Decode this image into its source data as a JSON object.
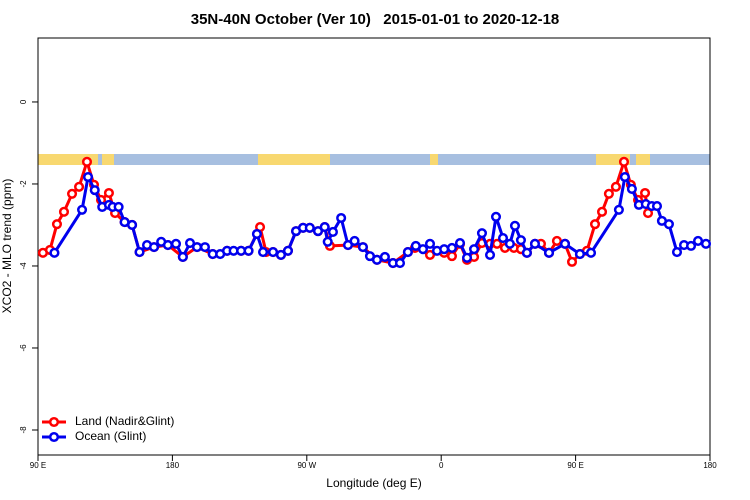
{
  "chart_data": {
    "type": "line",
    "title": "35N-40N October (Ver 10)   2015-01-01 to 2020-12-18",
    "xlabel": "Longitude (deg E)",
    "ylabel": "XCO2 - MLO trend (ppm)",
    "xlim": [
      90,
      540
    ],
    "ylim": [
      -8.61,
      1.56
    ],
    "xticks": [
      {
        "value": 90,
        "label": "90 E"
      },
      180,
      {
        "value": 270,
        "label": "90 W"
      },
      {
        "value": 360,
        "label": "0"
      },
      {
        "value": 450,
        "label": "90 E"
      },
      {
        "value": 540,
        "label": "180"
      }
    ],
    "yticks": [
      0,
      -2,
      -4,
      -6,
      -8
    ],
    "legend": "bottom left",
    "series": [
      {
        "name": "Land (Nadir&Glint)",
        "color": "#ff0000",
        "x": [
          93.3,
          98,
          102.7,
          107.4,
          112.8,
          117.5,
          122.8,
          127.5,
          132.2,
          137.5,
          141.6,
          148,
          153,
          158,
          167.7,
          177,
          187,
          196.5,
          207,
          216.6,
          226,
          231,
          238.7,
          242.7,
          247.4,
          252.7,
          257.4,
          262.8,
          267.5,
          272,
          277.5,
          282,
          285.5,
          297.6,
          307.6,
          317,
          327.7,
          337.7,
          342.4,
          352.5,
          362,
          367.2,
          372.6,
          377.3,
          382,
          387.3,
          392.7,
          397.4,
          402.7,
          408.7,
          413.4,
          417.4,
          422.8,
          426.8,
          432.2,
          437.5,
          442.9,
          447.6,
          452.9,
          457.6,
          463,
          467.7,
          472.3,
          477,
          482.4,
          487,
          491.8,
          496.5,
          498.5
        ],
        "values": [
          -3.68,
          -3.61,
          -2.98,
          -2.68,
          -2.24,
          -2.07,
          -1.46,
          -2.02,
          -2.39,
          -2.22,
          -2.71,
          -2.93,
          -3.0,
          -3.66,
          -3.54,
          -3.49,
          -3.78,
          -3.54,
          -3.71,
          -3.63,
          -3.63,
          -3.63,
          -3.05,
          -3.66,
          -3.66,
          -3.73,
          -3.63,
          -3.15,
          -3.07,
          -3.07,
          -3.15,
          -3.05,
          -3.51,
          -3.49,
          -3.54,
          -3.85,
          -3.93,
          -3.66,
          -3.56,
          -3.73,
          -3.68,
          -3.76,
          -3.46,
          -3.85,
          -3.78,
          -3.44,
          -3.46,
          -3.46,
          -3.56,
          -3.56,
          -3.59,
          -3.68,
          -3.46,
          -3.46,
          -3.68,
          -3.39,
          -3.46,
          -3.9,
          -3.71,
          -3.63,
          -2.98,
          -2.68,
          -2.24,
          -2.07,
          -1.46,
          -2.02,
          -2.39,
          -2.22,
          -2.71
        ]
      },
      {
        "name": "Ocean (Glint)",
        "color": "#0000ee",
        "x": [
          101,
          119.5,
          123.5,
          128,
          133,
          137.5,
          140,
          144,
          148,
          153,
          158,
          163,
          167.7,
          172.5,
          177,
          182.4,
          187,
          191.8,
          196.5,
          201.8,
          207,
          212,
          216.6,
          221,
          226,
          231,
          236.6,
          240.7,
          247.4,
          252.7,
          257.4,
          262.8,
          267.5,
          272,
          277.5,
          282,
          284,
          287.5,
          293,
          297.6,
          302,
          307.6,
          312.3,
          317,
          322.3,
          327.7,
          332.4,
          337.7,
          343,
          347.8,
          352.5,
          357.2,
          362,
          367.2,
          372.6,
          377.3,
          382,
          387.3,
          392.7,
          396.7,
          401.4,
          406,
          409.4,
          413.4,
          417.4,
          422.8,
          432.2,
          442.9,
          452.9,
          460.3,
          479,
          483,
          487.7,
          492.4,
          497,
          501,
          504.5,
          507.8,
          512.5,
          517.9,
          522.6,
          527.3,
          532,
          537.3
        ],
        "values": [
          -3.68,
          -2.63,
          -1.83,
          -2.15,
          -2.56,
          -2.51,
          -2.56,
          -2.56,
          -2.93,
          -3.0,
          -3.66,
          -3.49,
          -3.54,
          -3.41,
          -3.49,
          -3.46,
          -3.78,
          -3.44,
          -3.54,
          -3.54,
          -3.71,
          -3.71,
          -3.63,
          -3.63,
          -3.63,
          -3.63,
          -3.22,
          -3.66,
          -3.66,
          -3.73,
          -3.63,
          -3.15,
          -3.07,
          -3.07,
          -3.15,
          -3.05,
          -3.41,
          -3.17,
          -2.83,
          -3.49,
          -3.39,
          -3.54,
          -3.76,
          -3.85,
          -3.78,
          -3.93,
          -3.93,
          -3.66,
          -3.51,
          -3.59,
          -3.46,
          -3.63,
          -3.59,
          -3.56,
          -3.44,
          -3.8,
          -3.59,
          -3.2,
          -3.73,
          -2.8,
          -3.32,
          -3.46,
          -3.02,
          -3.37,
          -3.68,
          -3.46,
          -3.68,
          -3.46,
          -3.71,
          -3.68,
          -2.63,
          -1.83,
          -2.12,
          -2.51,
          -2.49,
          -2.54,
          -2.54,
          -2.9,
          -2.98,
          -3.66,
          -3.49,
          -3.51,
          -3.39,
          -3.46
        ]
      }
    ]
  }
}
